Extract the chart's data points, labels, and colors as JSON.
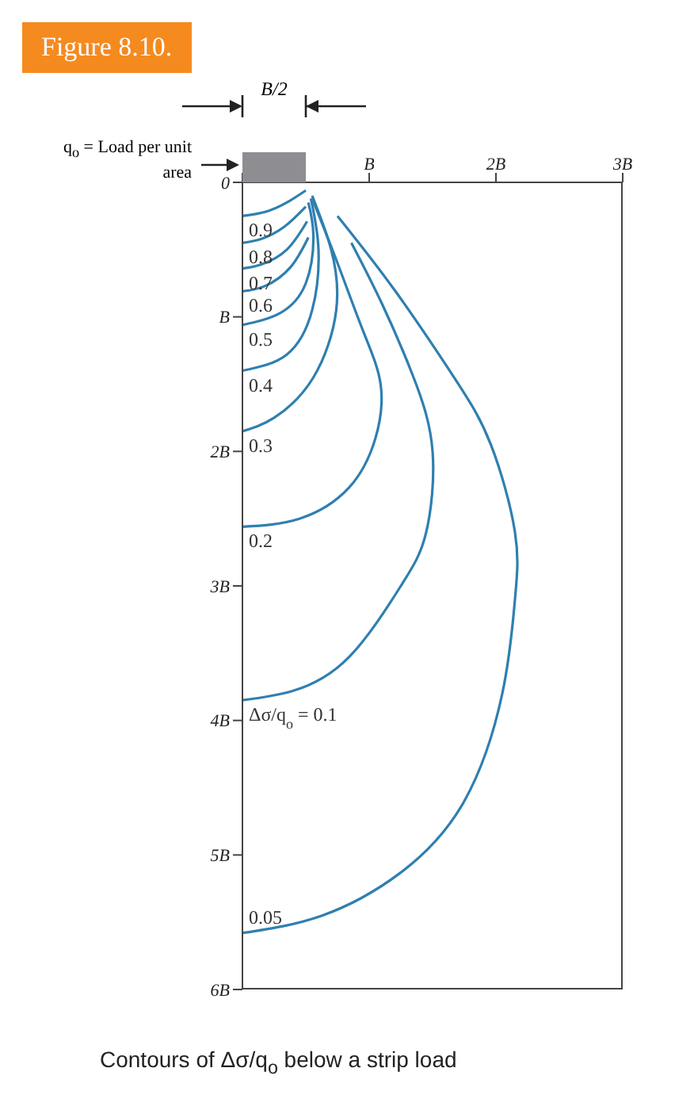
{
  "chart_data": {
    "type": "line",
    "title": "Figure 8.10.",
    "annotations": [
      "q$_{o}$ = Load per unit area",
      "B/2",
      "Contours of Δσ/q$_{o}$ below a strip load"
    ],
    "xlim": [
      0,
      3
    ],
    "xticks": [
      {
        "value": 0,
        "label": null
      },
      {
        "value": 1,
        "label": "B"
      },
      {
        "value": 2,
        "label": "2B"
      },
      {
        "value": 3,
        "label": "3B"
      }
    ],
    "ylim": [
      6,
      0
    ],
    "yticks": [
      {
        "value": 0,
        "label": "0"
      },
      {
        "value": 1,
        "label": "B"
      },
      {
        "value": 2,
        "label": "2B"
      },
      {
        "value": 3,
        "label": "3B"
      },
      {
        "value": 4,
        "label": "4B"
      },
      {
        "value": 5,
        "label": "5B"
      },
      {
        "value": 6,
        "label": "6B"
      }
    ],
    "marker": "none",
    "series": [
      {
        "name": "0.9",
        "color": "#2f7fb0",
        "x": [
          0.5,
          0.35,
          0.18,
          0
        ],
        "values": [
          0.06,
          0.15,
          0.22,
          0.25
        ]
      },
      {
        "name": "0.8",
        "color": "#2f7fb0",
        "x": [
          0.5,
          0.33,
          0.15,
          0
        ],
        "values": [
          0.18,
          0.33,
          0.42,
          0.45
        ]
      },
      {
        "name": "0.7",
        "color": "#2f7fb0",
        "x": [
          0.51,
          0.35,
          0.15,
          0
        ],
        "values": [
          0.29,
          0.5,
          0.61,
          0.64
        ]
      },
      {
        "name": "0.6",
        "color": "#2f7fb0",
        "x": [
          0.52,
          0.38,
          0.18,
          0
        ],
        "values": [
          0.41,
          0.63,
          0.77,
          0.81
        ]
      },
      {
        "name": "0.5",
        "color": "#2f7fb0",
        "x": [
          0.52,
          0.56,
          0.5,
          0.3,
          0
        ],
        "values": [
          0.15,
          0.4,
          0.75,
          0.97,
          1.06
        ]
      },
      {
        "name": "0.4",
        "color": "#2f7fb0",
        "x": [
          0.54,
          0.6,
          0.55,
          0.35,
          0
        ],
        "values": [
          0.12,
          0.5,
          0.95,
          1.28,
          1.4
        ]
      },
      {
        "name": "0.3",
        "color": "#2f7fb0",
        "x": [
          0.55,
          0.7,
          0.74,
          0.56,
          0.25,
          0
        ],
        "values": [
          0.1,
          0.5,
          0.95,
          1.45,
          1.75,
          1.85
        ]
      },
      {
        "name": "0.2",
        "color": "#2f7fb0",
        "x": [
          0.55,
          0.75,
          0.95,
          1.09,
          1.05,
          0.84,
          0.45,
          0
        ],
        "values": [
          0.12,
          0.6,
          1.1,
          1.5,
          1.9,
          2.27,
          2.5,
          2.56
        ]
      },
      {
        "name": "Δσ/q$_{o}$ = 0.1",
        "color": "#2f7fb0",
        "x": [
          0.86,
          1.1,
          1.35,
          1.5,
          1.45,
          1.25,
          0.84,
          0.4,
          0
        ],
        "values": [
          0.45,
          0.9,
          1.45,
          2.0,
          2.6,
          3.0,
          3.53,
          3.78,
          3.85
        ]
      },
      {
        "name": "0.05",
        "color": "#2f7fb0",
        "x": [
          0.75,
          1.2,
          1.67,
          1.96,
          2.15,
          2.15,
          2.05,
          1.75,
          1.25,
          0.63,
          0
        ],
        "values": [
          0.25,
          0.8,
          1.45,
          1.95,
          2.6,
          3.1,
          3.8,
          4.6,
          5.13,
          5.45,
          5.58
        ]
      }
    ]
  }
}
